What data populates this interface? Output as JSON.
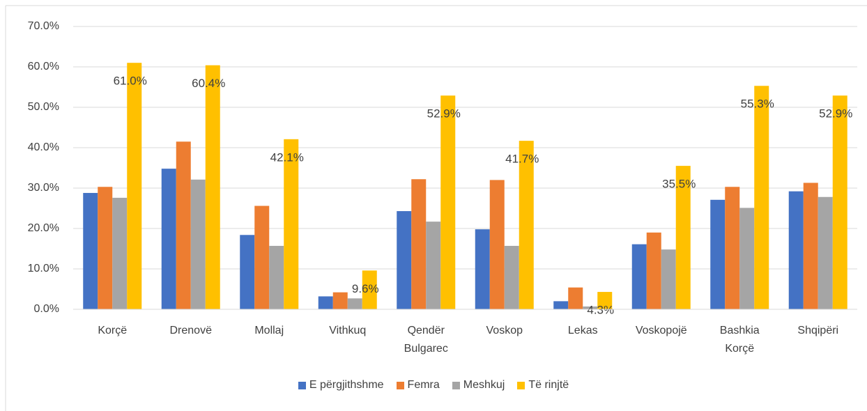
{
  "chart_data": {
    "type": "bar",
    "categories": [
      "Korçë",
      "Drenovë",
      "Mollaj",
      "Vithkuq",
      "Qendër Bulgarec",
      "Voskop",
      "Lekas",
      "Voskopojë",
      "Bashkia Korçë",
      "Shqipëri"
    ],
    "series": [
      {
        "name": "E përgjithshme",
        "color": "#4472c4",
        "values": [
          28.8,
          34.8,
          18.4,
          3.2,
          24.3,
          19.8,
          2.0,
          16.1,
          27.1,
          29.2
        ]
      },
      {
        "name": "Femra",
        "color": "#ed7d31",
        "values": [
          30.3,
          41.5,
          25.6,
          4.2,
          32.2,
          32.0,
          5.4,
          19.0,
          30.3,
          31.3
        ]
      },
      {
        "name": "Meshkuj",
        "color": "#a5a5a5",
        "values": [
          27.6,
          32.1,
          15.7,
          2.7,
          21.7,
          15.7,
          0.7,
          14.8,
          25.1,
          27.8
        ]
      },
      {
        "name": "Të rinjtë",
        "color": "#ffc000",
        "values": [
          61.0,
          60.4,
          42.1,
          9.6,
          52.9,
          41.7,
          4.3,
          35.5,
          55.3,
          52.9
        ],
        "value_labels": [
          "61.0%",
          "60.4%",
          "42.1%",
          "9.6%",
          "52.9%",
          "41.7%",
          "4.3%",
          "35.5%",
          "55.3%",
          "52.9%"
        ]
      }
    ],
    "ylim": [
      0,
      70
    ],
    "yticks": [
      {
        "value": 0,
        "label": "0.0%"
      },
      {
        "value": 10,
        "label": "10.0%"
      },
      {
        "value": 20,
        "label": "20.0%"
      },
      {
        "value": 30,
        "label": "30.0%"
      },
      {
        "value": 40,
        "label": "40.0%"
      },
      {
        "value": 50,
        "label": "50.0%"
      },
      {
        "value": 60,
        "label": "60.0%"
      },
      {
        "value": 70,
        "label": "70.0%"
      }
    ],
    "grid": true,
    "legend": "bottom"
  }
}
